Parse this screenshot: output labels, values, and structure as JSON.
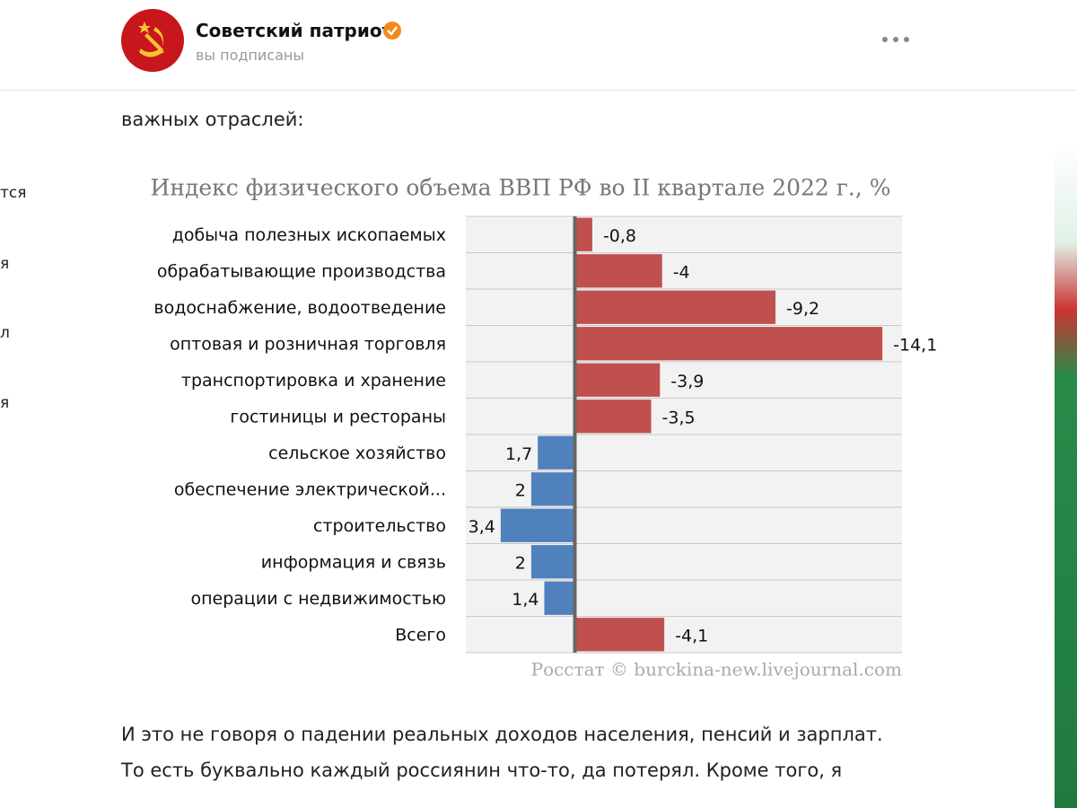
{
  "header": {
    "channel_name": "Советский патриот",
    "status": "вы подписаны"
  },
  "sidebar": {
    "items": [
      "тся",
      "я",
      "л",
      "я"
    ]
  },
  "body": {
    "intro": "важных отраслей:",
    "paragraph": [
      "И это не говоря о падении реальных доходов населения, пенсий и зарплат.",
      "То есть буквально каждый россиянин что-то, да потерял. Кроме того, я"
    ]
  },
  "chart_data": {
    "type": "hbar",
    "title": "Индекс физического объема ВВП РФ во II квартале 2022 г., %",
    "source": "Росстат © burckina-new.livejournal.com",
    "categories": [
      "добыча полезных ископаемых",
      "обрабатывающие производства",
      "водоснабжение, водоотведение",
      "оптовая и розничная торговля",
      "транспортировка и хранение",
      "гостиницы и рестораны",
      "сельское хозяйство",
      "обеспечение электрической...",
      "строительство",
      "информация и связь",
      "операции с недвижимостью",
      "Всего"
    ],
    "values": [
      -0.8,
      -4,
      -9.2,
      -14.1,
      -3.9,
      -3.5,
      1.7,
      2,
      3.4,
      2,
      1.4,
      -4.1
    ],
    "value_labels": [
      "-0,8",
      "-4",
      "-9,2",
      "-14,1",
      "-3,9",
      "-3,5",
      "1,7",
      "2",
      "3,4",
      "2",
      "1,4",
      "-4,1"
    ],
    "colors": [
      "#c0504d",
      "#c0504d",
      "#c0504d",
      "#c0504d",
      "#c0504d",
      "#c0504d",
      "#4f81bd",
      "#4f81bd",
      "#4f81bd",
      "#4f81bd",
      "#4f81bd",
      "#c0504d"
    ],
    "xlim": [
      5,
      -15
    ]
  }
}
